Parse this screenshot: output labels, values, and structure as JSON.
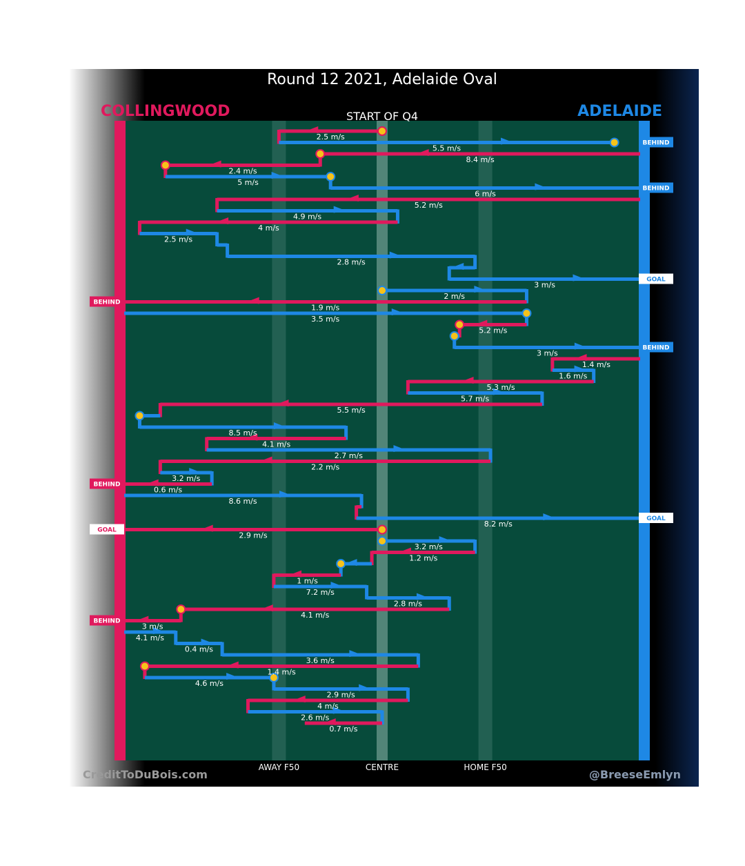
{
  "chart_data": {
    "type": "line",
    "title": "Round 12 2021, Adelaide Oval",
    "subtitle": "START OF Q4",
    "teams": {
      "home": {
        "name": "ADELAIDE",
        "color": "#1e88e5"
      },
      "away": {
        "name": "COLLINGWOOD",
        "color": "#e0195d"
      }
    },
    "x_axis": {
      "range": [
        0,
        100
      ],
      "ticks": [
        {
          "label": "AWAY F50",
          "value": 30
        },
        {
          "label": "CENTRE",
          "value": 50
        },
        {
          "label": "HOME F50",
          "value": 70
        }
      ]
    },
    "credits": {
      "left": "CreditToDuBois.com",
      "right": "@BreeseEmlyn"
    },
    "possessions": [
      {
        "team": "away",
        "from": 50,
        "to": 30,
        "speed": "2.5 m/s",
        "start_marker": true
      },
      {
        "team": "home",
        "from": 30,
        "to": 95,
        "speed": "5.5 m/s",
        "end_marker": true,
        "outcome": "BEHIND"
      },
      {
        "team": "away",
        "from": 100,
        "to": 38,
        "speed": "8.4 m/s",
        "end_marker": true
      },
      {
        "team": "away",
        "from": 38,
        "to": 8,
        "speed": "2.4 m/s",
        "end_marker": true
      },
      {
        "team": "home",
        "from": 8,
        "to": 40,
        "speed": "5 m/s",
        "end_marker": true
      },
      {
        "team": "home",
        "from": 40,
        "to": 100,
        "speed": "6 m/s",
        "outcome": "BEHIND"
      },
      {
        "team": "away",
        "from": 100,
        "to": 18,
        "speed": "5.2 m/s"
      },
      {
        "team": "home",
        "from": 18,
        "to": 53,
        "speed": "4.9 m/s"
      },
      {
        "team": "away",
        "from": 53,
        "to": 3,
        "speed": "4 m/s"
      },
      {
        "team": "home",
        "from": 3,
        "to": 18,
        "speed": "2.5 m/s"
      },
      {
        "team": "home",
        "from": 18,
        "to": 20,
        "speed": ""
      },
      {
        "team": "home",
        "from": 20,
        "to": 68,
        "speed": "2.8 m/s"
      },
      {
        "team": "home",
        "from": 68,
        "to": 63,
        "speed": ""
      },
      {
        "team": "home",
        "from": 63,
        "to": 100,
        "speed": "3 m/s",
        "outcome": "GOAL"
      },
      {
        "team": "home",
        "from": 50,
        "to": 78,
        "speed": "2 m/s",
        "start_marker": true
      },
      {
        "team": "away",
        "from": 78,
        "to": 0,
        "speed": "1.9 m/s",
        "outcome": "BEHIND"
      },
      {
        "team": "home",
        "from": 0,
        "to": 78,
        "speed": "3.5 m/s",
        "end_marker": true
      },
      {
        "team": "away",
        "from": 78,
        "to": 65,
        "speed": "5.2 m/s",
        "end_marker": true
      },
      {
        "team": "home",
        "from": 65,
        "to": 64,
        "speed": "",
        "end_marker": true
      },
      {
        "team": "home",
        "from": 64,
        "to": 100,
        "speed": "3 m/s",
        "outcome": "BEHIND"
      },
      {
        "team": "away",
        "from": 100,
        "to": 83,
        "speed": "1.4 m/s"
      },
      {
        "team": "home",
        "from": 83,
        "to": 91,
        "speed": "1.6 m/s"
      },
      {
        "team": "away",
        "from": 91,
        "to": 55,
        "speed": "5.3 m/s"
      },
      {
        "team": "home",
        "from": 55,
        "to": 81,
        "speed": "5.7 m/s"
      },
      {
        "team": "away",
        "from": 81,
        "to": 7,
        "speed": "5.5 m/s"
      },
      {
        "team": "home",
        "from": 7,
        "to": 3,
        "speed": "",
        "end_marker": true
      },
      {
        "team": "home",
        "from": 3,
        "to": 43,
        "speed": "8.5 m/s"
      },
      {
        "team": "away",
        "from": 43,
        "to": 16,
        "speed": "4.1 m/s"
      },
      {
        "team": "home",
        "from": 16,
        "to": 71,
        "speed": "2.7 m/s"
      },
      {
        "team": "away",
        "from": 71,
        "to": 7,
        "speed": "2.2 m/s"
      },
      {
        "team": "home",
        "from": 7,
        "to": 17,
        "speed": "3.2 m/s"
      },
      {
        "team": "away",
        "from": 17,
        "to": 0,
        "speed": "0.6 m/s",
        "outcome": "BEHIND"
      },
      {
        "team": "home",
        "from": 0,
        "to": 46,
        "speed": "8.6 m/s"
      },
      {
        "team": "away",
        "from": 46,
        "to": 45,
        "speed": ""
      },
      {
        "team": "home",
        "from": 45,
        "to": 100,
        "speed": "8.2 m/s",
        "outcome": "GOAL"
      },
      {
        "team": "away",
        "from": 50,
        "to": 0,
        "speed": "2.9 m/s",
        "start_marker": true,
        "outcome": "GOAL"
      },
      {
        "team": "home",
        "from": 50,
        "to": 68,
        "speed": "3.2 m/s",
        "start_marker": true
      },
      {
        "team": "away",
        "from": 68,
        "to": 48,
        "speed": "1.2 m/s"
      },
      {
        "team": "home",
        "from": 48,
        "to": 42,
        "speed": "",
        "end_marker": true
      },
      {
        "team": "away",
        "from": 42,
        "to": 29,
        "speed": "1 m/s"
      },
      {
        "team": "home",
        "from": 29,
        "to": 47,
        "speed": "7.2 m/s"
      },
      {
        "team": "home",
        "from": 47,
        "to": 63,
        "speed": "2.8 m/s"
      },
      {
        "team": "away",
        "from": 63,
        "to": 11,
        "speed": "4.1 m/s",
        "end_marker": true
      },
      {
        "team": "away",
        "from": 11,
        "to": 0,
        "speed": "3 m/s",
        "outcome": "BEHIND"
      },
      {
        "team": "home",
        "from": 0,
        "to": 10,
        "speed": "4.1 m/s"
      },
      {
        "team": "home",
        "from": 10,
        "to": 19,
        "speed": "0.4 m/s"
      },
      {
        "team": "home",
        "from": 19,
        "to": 57,
        "speed": "3.6 m/s"
      },
      {
        "team": "away",
        "from": 57,
        "to": 4,
        "speed": "1.4 m/s",
        "end_marker": true
      },
      {
        "team": "home",
        "from": 4,
        "to": 29,
        "speed": "4.6 m/s",
        "end_marker": true
      },
      {
        "team": "home",
        "from": 29,
        "to": 55,
        "speed": "2.9 m/s"
      },
      {
        "team": "away",
        "from": 55,
        "to": 24,
        "speed": "4 m/s"
      },
      {
        "team": "home",
        "from": 24,
        "to": 50,
        "speed": "2.6 m/s"
      },
      {
        "team": "away",
        "from": 50,
        "to": 35,
        "speed": "0.7 m/s"
      }
    ]
  }
}
